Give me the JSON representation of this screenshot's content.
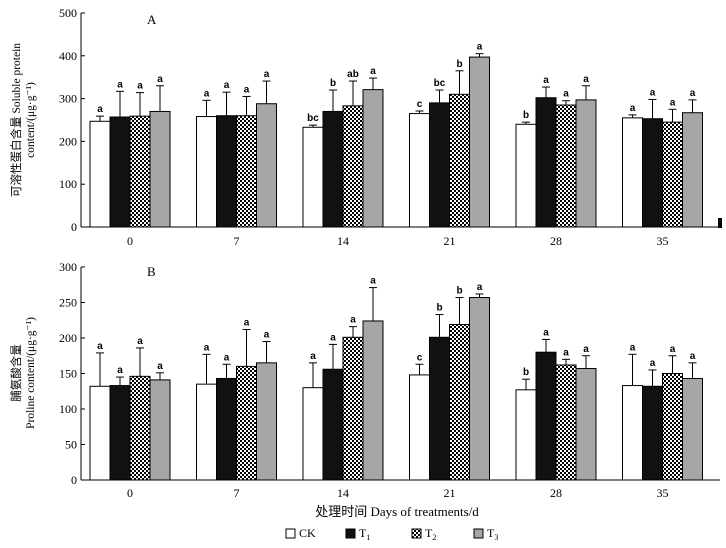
{
  "chart_data": [
    {
      "type": "bar",
      "panel": "A",
      "ylabel_cn": "可溶性蛋白含量",
      "ylabel_en": "Soluble protein",
      "ylabel_unit": "content/(μg·g⁻¹)",
      "ylim": [
        0,
        500
      ],
      "yticks": [
        "0",
        "100",
        "200",
        "300",
        "400",
        "500"
      ],
      "categories": [
        "0",
        "7",
        "14",
        "21",
        "28",
        "35"
      ],
      "series": [
        {
          "name": "CK",
          "values": [
            247,
            258,
            233,
            265,
            240,
            255
          ],
          "errors": [
            12,
            38,
            5,
            6,
            5,
            7
          ],
          "labels": [
            "a",
            "a",
            "bc",
            "c",
            "b",
            "a"
          ]
        },
        {
          "name": "T1",
          "values": [
            257,
            260,
            270,
            290,
            302,
            253
          ],
          "errors": [
            60,
            55,
            50,
            30,
            25,
            45
          ],
          "labels": [
            "a",
            "a",
            "b",
            "bc",
            "a",
            "a"
          ]
        },
        {
          "name": "T2",
          "values": [
            259,
            260,
            283,
            310,
            285,
            245
          ],
          "errors": [
            55,
            45,
            58,
            55,
            10,
            30
          ],
          "labels": [
            "a",
            "a",
            "ab",
            "b",
            "a",
            "a"
          ]
        },
        {
          "name": "T3",
          "values": [
            270,
            288,
            321,
            397,
            297,
            267
          ],
          "errors": [
            60,
            53,
            27,
            8,
            33,
            30
          ],
          "labels": [
            "a",
            "a",
            "a",
            "a",
            "a",
            "a"
          ]
        }
      ]
    },
    {
      "type": "bar",
      "panel": "B",
      "ylabel_cn": "脯氨酸含量",
      "ylabel_en": "Proline content/(μg·g⁻¹)",
      "ylim": [
        0,
        300
      ],
      "yticks": [
        "0",
        "50",
        "100",
        "150",
        "200",
        "250",
        "300"
      ],
      "categories": [
        "0",
        "7",
        "14",
        "21",
        "28",
        "35"
      ],
      "xlabel": "处理时间 Days of treatments/d",
      "series": [
        {
          "name": "CK",
          "values": [
            132,
            135,
            130,
            148,
            127,
            133
          ],
          "errors": [
            47,
            42,
            35,
            15,
            15,
            44
          ],
          "labels": [
            "a",
            "a",
            "a",
            "c",
            "b",
            "a"
          ]
        },
        {
          "name": "T1",
          "values": [
            133,
            143,
            156,
            201,
            180,
            132
          ],
          "errors": [
            12,
            20,
            35,
            32,
            18,
            23
          ],
          "labels": [
            "a",
            "a",
            "a",
            "b",
            "a",
            "a"
          ]
        },
        {
          "name": "T2",
          "values": [
            146,
            160,
            201,
            219,
            162,
            150
          ],
          "errors": [
            40,
            52,
            15,
            38,
            8,
            25
          ],
          "labels": [
            "a",
            "a",
            "a",
            "b",
            "a",
            "a"
          ]
        },
        {
          "name": "T3",
          "values": [
            141,
            165,
            224,
            257,
            157,
            143
          ],
          "errors": [
            10,
            30,
            47,
            5,
            18,
            22
          ],
          "labels": [
            "a",
            "a",
            "a",
            "a",
            "a",
            "a"
          ]
        }
      ]
    }
  ],
  "legend": [
    {
      "name": "CK",
      "label": "CK",
      "sub": ""
    },
    {
      "name": "T1",
      "label": "T",
      "sub": "1"
    },
    {
      "name": "T2",
      "label": "T",
      "sub": "2"
    },
    {
      "name": "T3",
      "label": "T",
      "sub": "3"
    }
  ],
  "colors": {
    "CK": "#ffffff",
    "T1": "#111111",
    "T2": "pattern-dots",
    "T3": "#a6a6a6"
  }
}
